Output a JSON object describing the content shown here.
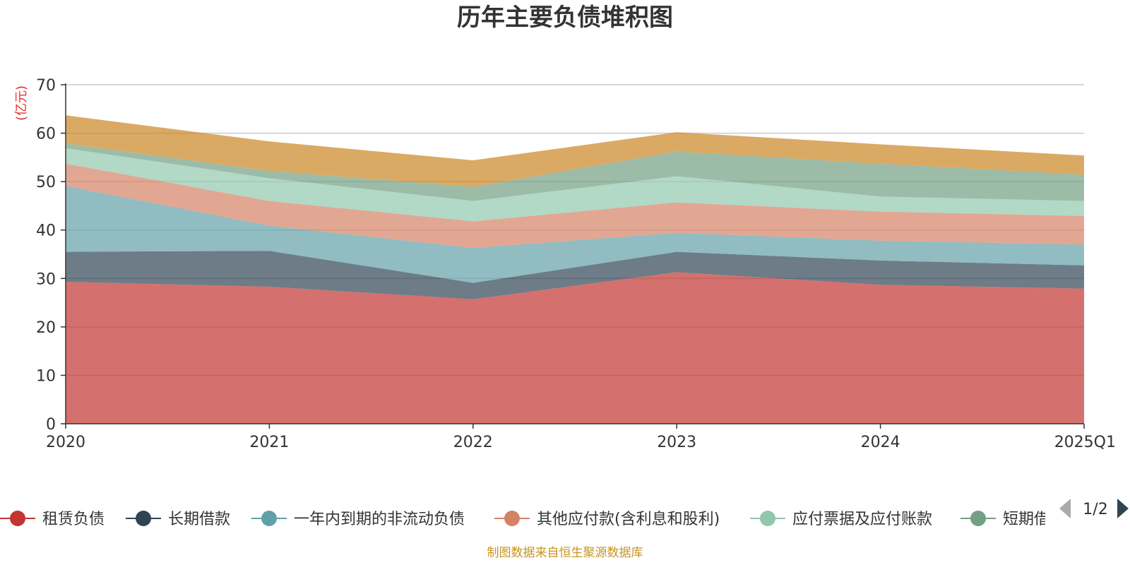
{
  "chart_data": {
    "type": "area",
    "stacked": true,
    "title": "历年主要负债堆积图",
    "y_unit": "(亿元)",
    "x": [
      "2020",
      "2021",
      "2022",
      "2023",
      "2024",
      "2025Q1"
    ],
    "ylim": [
      0,
      70
    ],
    "y_ticks": [
      0,
      10,
      20,
      30,
      40,
      50,
      60,
      70
    ],
    "grid": true,
    "legend_position": "bottom",
    "series": [
      {
        "name": "租赁负债",
        "color": "#c23531",
        "values": [
          29.3,
          28.3,
          25.7,
          31.3,
          28.7,
          27.9
        ]
      },
      {
        "name": "长期借款",
        "color": "#2f4554",
        "values": [
          6.2,
          7.4,
          3.4,
          4.2,
          5.0,
          4.8
        ]
      },
      {
        "name": "一年内到期的非流动负债",
        "color": "#61a0a8",
        "values": [
          13.6,
          5.2,
          7.2,
          3.9,
          4.1,
          4.3
        ]
      },
      {
        "name": "其他应付款(含利息和股利)",
        "color": "#d48265",
        "values": [
          4.6,
          5.1,
          5.5,
          6.3,
          6.0,
          5.9
        ]
      },
      {
        "name": "应付票据及应付账款",
        "color": "#91c7ae",
        "values": [
          3.2,
          4.7,
          4.2,
          5.4,
          3.1,
          3.1
        ]
      },
      {
        "name": "短期借款",
        "color": "#749f83",
        "values": [
          1.0,
          1.5,
          2.9,
          5.1,
          6.8,
          5.4
        ]
      },
      {
        "name": "",
        "color": "#ca8622",
        "values": [
          5.8,
          6.1,
          5.5,
          4.0,
          4.0,
          4.0
        ]
      }
    ]
  },
  "legend": {
    "visible": [
      "租赁负债",
      "长期借款",
      "一年内到期的非流动负债",
      "其他应付款(含利息和股利)",
      "应付票据及应付账款",
      "短期借"
    ],
    "page_indicator": "1/2"
  },
  "source_note": "制图数据来自恒生聚源数据库"
}
